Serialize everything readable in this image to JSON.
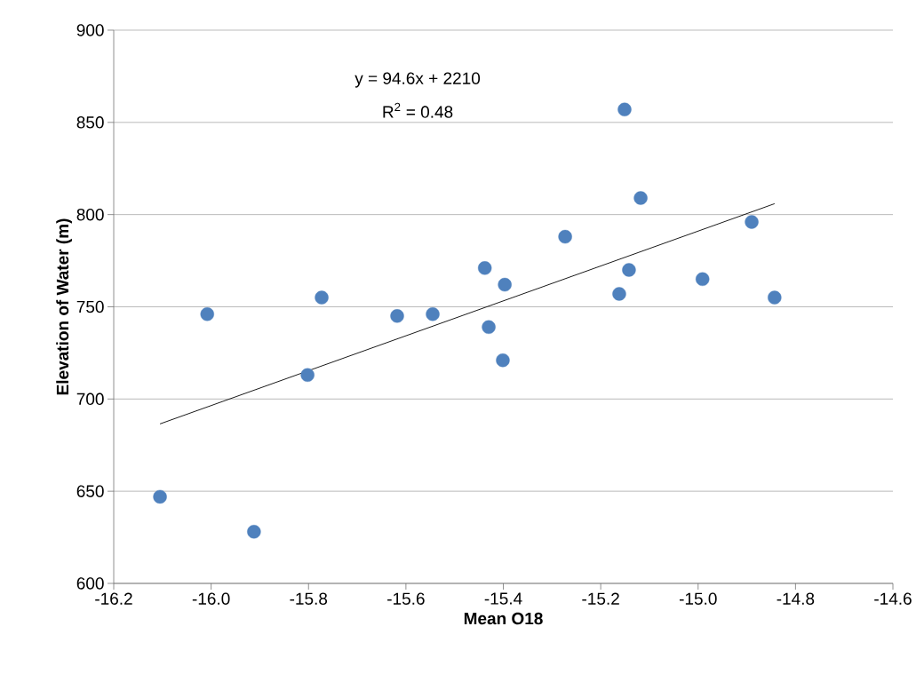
{
  "chart_data": {
    "type": "scatter",
    "xlabel": "Mean O18",
    "ylabel": "Elevation of Water (m)",
    "annotations": [
      "y = 94.6x + 2210",
      "R$^{2}$ = 0.48"
    ],
    "series": [
      {
        "color": "#4f81bd",
        "marker": "circle",
        "x": [
          -16.105,
          -16.008,
          -15.912,
          -15.802,
          -15.773,
          -15.618,
          -15.545,
          -15.438,
          -15.43,
          -15.401,
          -15.397,
          -15.273,
          -15.162,
          -15.151,
          -15.142,
          -15.118,
          -14.991,
          -14.89,
          -14.843
        ],
        "values": [
          647,
          746,
          628,
          713,
          755,
          745,
          746,
          771,
          739,
          721,
          762,
          788,
          757,
          857,
          770,
          809,
          765,
          796,
          755
        ]
      },
      {
        "type": "line",
        "color": "#000000",
        "marker": "none",
        "line_style": "solid",
        "x": [
          -16.105,
          -14.843
        ],
        "values": [
          686.5,
          805.9
        ]
      }
    ],
    "xlim": [
      -16.2,
      -14.6
    ],
    "ylim": [
      600,
      900
    ],
    "xticks": [
      -16.2,
      {
        "value": -16,
        "label": "-16.0"
      },
      -15.8,
      -15.6,
      -15.4,
      -15.2,
      {
        "value": -15,
        "label": "-15.0"
      },
      -14.8,
      -14.6
    ],
    "yticks": [
      600,
      650,
      700,
      750,
      800,
      850,
      900
    ],
    "grid": "y"
  }
}
